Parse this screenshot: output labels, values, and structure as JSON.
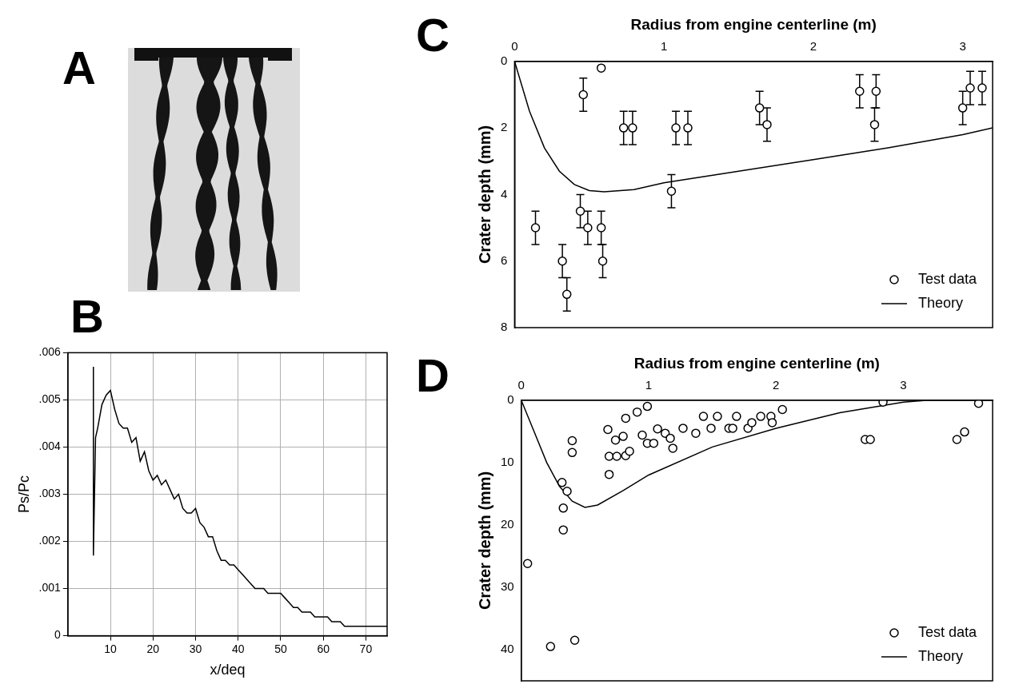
{
  "chart_data": [
    {
      "type": "image",
      "panel": "A"
    },
    {
      "type": "line",
      "panel": "B",
      "x_label": "x/deq",
      "y_label": "Ps/Pc",
      "x": [
        6,
        6,
        6.5,
        7,
        8,
        9,
        10,
        11,
        12,
        13,
        14,
        15,
        16,
        17,
        18,
        19,
        20,
        21,
        22,
        23,
        24,
        25,
        26,
        27,
        28,
        29,
        30,
        31,
        32,
        33,
        34,
        35,
        36,
        37,
        38,
        39,
        40,
        41,
        42,
        43,
        44,
        45,
        46,
        47,
        48,
        49,
        50,
        51,
        52,
        53,
        54,
        55,
        56,
        57,
        58,
        59,
        60,
        61,
        62,
        63,
        64,
        65,
        66,
        67,
        68,
        69,
        70,
        71,
        72,
        73,
        74,
        75
      ],
      "values": [
        0.0057,
        0.0017,
        0.0042,
        0.0044,
        0.0049,
        0.0051,
        0.0052,
        0.0048,
        0.0045,
        0.0044,
        0.0044,
        0.0041,
        0.0042,
        0.0037,
        0.0039,
        0.0035,
        0.0033,
        0.0034,
        0.0032,
        0.0033,
        0.0031,
        0.0029,
        0.003,
        0.0027,
        0.0026,
        0.0026,
        0.0027,
        0.0024,
        0.0023,
        0.0021,
        0.0021,
        0.0018,
        0.0016,
        0.0016,
        0.0015,
        0.0015,
        0.0014,
        0.0013,
        0.0012,
        0.0011,
        0.001,
        0.001,
        0.001,
        0.0009,
        0.0009,
        0.0009,
        0.0009,
        0.0008,
        0.0007,
        0.0006,
        0.0006,
        0.0005,
        0.0005,
        0.0005,
        0.0004,
        0.0004,
        0.0004,
        0.0004,
        0.0003,
        0.0003,
        0.0003,
        0.0002,
        0.0002,
        0.0002,
        0.0002,
        0.0002,
        0.0002,
        0.0002,
        0.0002,
        0.0002,
        0.0002,
        0.0002
      ],
      "color": "#000000",
      "line_style": "solid",
      "xlim": [
        0,
        75
      ],
      "xticks": [
        10,
        20,
        30,
        40,
        50,
        60,
        70
      ],
      "ylim": [
        0,
        0.006
      ],
      "yticks": [
        0,
        {
          "value": 0.001,
          "label": ".001"
        },
        {
          "value": 0.002,
          "label": ".002"
        },
        {
          "value": 0.003,
          "label": ".003"
        },
        {
          "value": 0.004,
          "label": ".004"
        },
        {
          "value": 0.005,
          "label": ".005"
        },
        {
          "value": 0.006,
          "label": ".006"
        }
      ],
      "grid": true
    },
    {
      "type": "scatter",
      "panel": "C",
      "x_label": "Radius from engine centerline (m)",
      "y_label": "Crater depth (mm)",
      "xlim": [
        0,
        3.2
      ],
      "xticks": [
        0,
        1,
        2,
        3
      ],
      "ylim": [
        0,
        8
      ],
      "yticks": [
        0,
        2,
        4,
        6,
        8
      ],
      "grid": false,
      "legend": "lower right",
      "series": [
        {
          "name": "Test data",
          "type": "scatter",
          "marker": "circle",
          "color": "#000000",
          "x": [
            0.14,
            0.32,
            0.35,
            0.44,
            0.46,
            0.49,
            0.58,
            0.58,
            0.59,
            0.73,
            0.79,
            1.05,
            1.08,
            1.16,
            1.64,
            1.69,
            2.31,
            2.41,
            2.42,
            3.0,
            3.05,
            3.13
          ],
          "values": [
            5.0,
            6.0,
            7.0,
            4.5,
            1.0,
            5.0,
            0.2,
            5.0,
            6.0,
            2.0,
            2.0,
            3.9,
            2.0,
            2.0,
            1.4,
            1.9,
            0.9,
            1.9,
            0.9,
            1.4,
            0.8,
            0.8
          ],
          "errors": [
            0.5,
            0.5,
            0.5,
            0.5,
            0.5,
            0.5,
            null,
            0.5,
            0.5,
            0.5,
            0.5,
            0.5,
            0.5,
            0.5,
            0.5,
            0.5,
            0.5,
            0.5,
            0.5,
            0.5,
            0.5,
            0.5
          ]
        },
        {
          "name": "Theory",
          "type": "line",
          "line_style": "solid",
          "color": "#000000",
          "x": [
            0,
            0.1,
            0.2,
            0.3,
            0.4,
            0.5,
            0.6,
            0.8,
            1.0,
            1.5,
            2.0,
            2.5,
            3.0,
            3.2
          ],
          "values": [
            0,
            1.5,
            2.6,
            3.3,
            3.7,
            3.88,
            3.92,
            3.85,
            3.65,
            3.3,
            2.95,
            2.6,
            2.2,
            2.0
          ]
        }
      ]
    },
    {
      "type": "scatter",
      "panel": "D",
      "x_label": "Radius from engine centerline (m)",
      "y_label": "Crater depth (mm)",
      "xlim": [
        0,
        3.7
      ],
      "xticks": [
        0,
        1,
        2,
        3
      ],
      "ylim": [
        0,
        45
      ],
      "yticks": [
        0,
        10,
        20,
        30,
        40
      ],
      "grid": false,
      "legend": "lower right",
      "series": [
        {
          "name": "Test data",
          "type": "scatter",
          "marker": "circle",
          "color": "#000000",
          "x": [
            0.05,
            0.23,
            0.42,
            0.33,
            0.33,
            0.4,
            0.4,
            0.32,
            0.36,
            0.68,
            0.69,
            0.74,
            0.75,
            0.69,
            0.8,
            0.82,
            0.82,
            0.85,
            0.91,
            0.99,
            0.95,
            0.99,
            1.04,
            1.07,
            1.13,
            1.17,
            1.19,
            1.27,
            1.37,
            1.43,
            1.49,
            1.54,
            1.63,
            1.66,
            1.69,
            1.78,
            1.81,
            1.88,
            1.96,
            1.97,
            2.05,
            2.7,
            2.74,
            2.84,
            3.42,
            3.48,
            3.59
          ],
          "values": [
            26.2,
            39.5,
            38.5,
            17.3,
            20.8,
            6.5,
            8.4,
            13.2,
            14.6,
            4.7,
            9.0,
            6.4,
            9.0,
            11.9,
            5.8,
            8.9,
            2.9,
            8.2,
            1.9,
            1.0,
            5.6,
            6.9,
            6.9,
            4.6,
            5.3,
            6.1,
            7.7,
            4.5,
            5.3,
            2.6,
            4.5,
            2.6,
            4.5,
            4.5,
            2.6,
            4.5,
            3.6,
            2.6,
            2.6,
            3.6,
            1.5,
            6.3,
            6.3,
            0.3,
            6.3,
            5.1,
            0.5
          ]
        },
        {
          "name": "Theory",
          "type": "line",
          "line_style": "solid",
          "color": "#000000",
          "x": [
            0,
            0.1,
            0.2,
            0.3,
            0.4,
            0.5,
            0.6,
            0.8,
            1.0,
            1.5,
            2.0,
            2.5,
            3.0,
            3.2,
            3.7
          ],
          "values": [
            0,
            5,
            10,
            13.8,
            16.2,
            17.2,
            16.8,
            14.5,
            12,
            7.5,
            4.5,
            2,
            0.3,
            0,
            0
          ]
        }
      ]
    }
  ]
}
